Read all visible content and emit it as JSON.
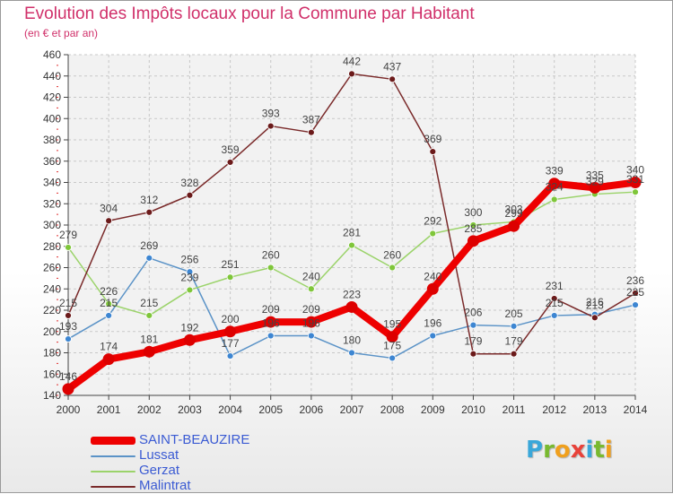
{
  "title": "Evolution des Impôts locaux pour la Commune par Habitant",
  "subtitle": "(en € et par an)",
  "logo": {
    "text": "Proxiti",
    "letters": [
      {
        "ch": "P",
        "color": "#3aa7d9"
      },
      {
        "ch": "r",
        "color": "#79b92f"
      },
      {
        "ch": "o",
        "color": "#f0a01e"
      },
      {
        "ch": "x",
        "color": "#e8423a"
      },
      {
        "ch": "i",
        "color": "#3aa7d9"
      },
      {
        "ch": "t",
        "color": "#79b92f"
      },
      {
        "ch": "i",
        "color": "#f0a01e"
      }
    ]
  },
  "chart_data": {
    "type": "line",
    "x": [
      2000,
      2001,
      2002,
      2003,
      2004,
      2005,
      2006,
      2007,
      2008,
      2009,
      2010,
      2011,
      2012,
      2013,
      2014
    ],
    "ylim": [
      140,
      460
    ],
    "yticks": [
      140,
      160,
      180,
      200,
      220,
      240,
      260,
      280,
      300,
      320,
      340,
      360,
      380,
      400,
      420,
      440,
      460
    ],
    "grid": true,
    "legend_position": "bottom-left",
    "series": [
      {
        "name": "SAINT-BEAUZIRE",
        "color": "#ee0000",
        "marker_color": "#dd0000",
        "emphasis": true,
        "values": [
          146,
          174,
          181,
          192,
          200,
          209,
          209,
          223,
          195,
          240,
          285,
          299,
          339,
          335,
          340
        ]
      },
      {
        "name": "Lussat",
        "color": "#5b93c7",
        "marker_color": "#3d86d2",
        "values": [
          193,
          215,
          269,
          256,
          177,
          196,
          196,
          180,
          175,
          196,
          206,
          205,
          215,
          216,
          225
        ]
      },
      {
        "name": "Gerzat",
        "color": "#9bd36a",
        "marker_color": "#7fc63a",
        "values": [
          279,
          226,
          215,
          239,
          251,
          260,
          240,
          281,
          260,
          292,
          300,
          303,
          324,
          329,
          331
        ]
      },
      {
        "name": "Malintrat",
        "color": "#7a2a2a",
        "marker_color": "#6b1a1a",
        "values": [
          215,
          304,
          312,
          328,
          359,
          393,
          387,
          442,
          437,
          369,
          179,
          179,
          231,
          213,
          236
        ]
      }
    ]
  }
}
